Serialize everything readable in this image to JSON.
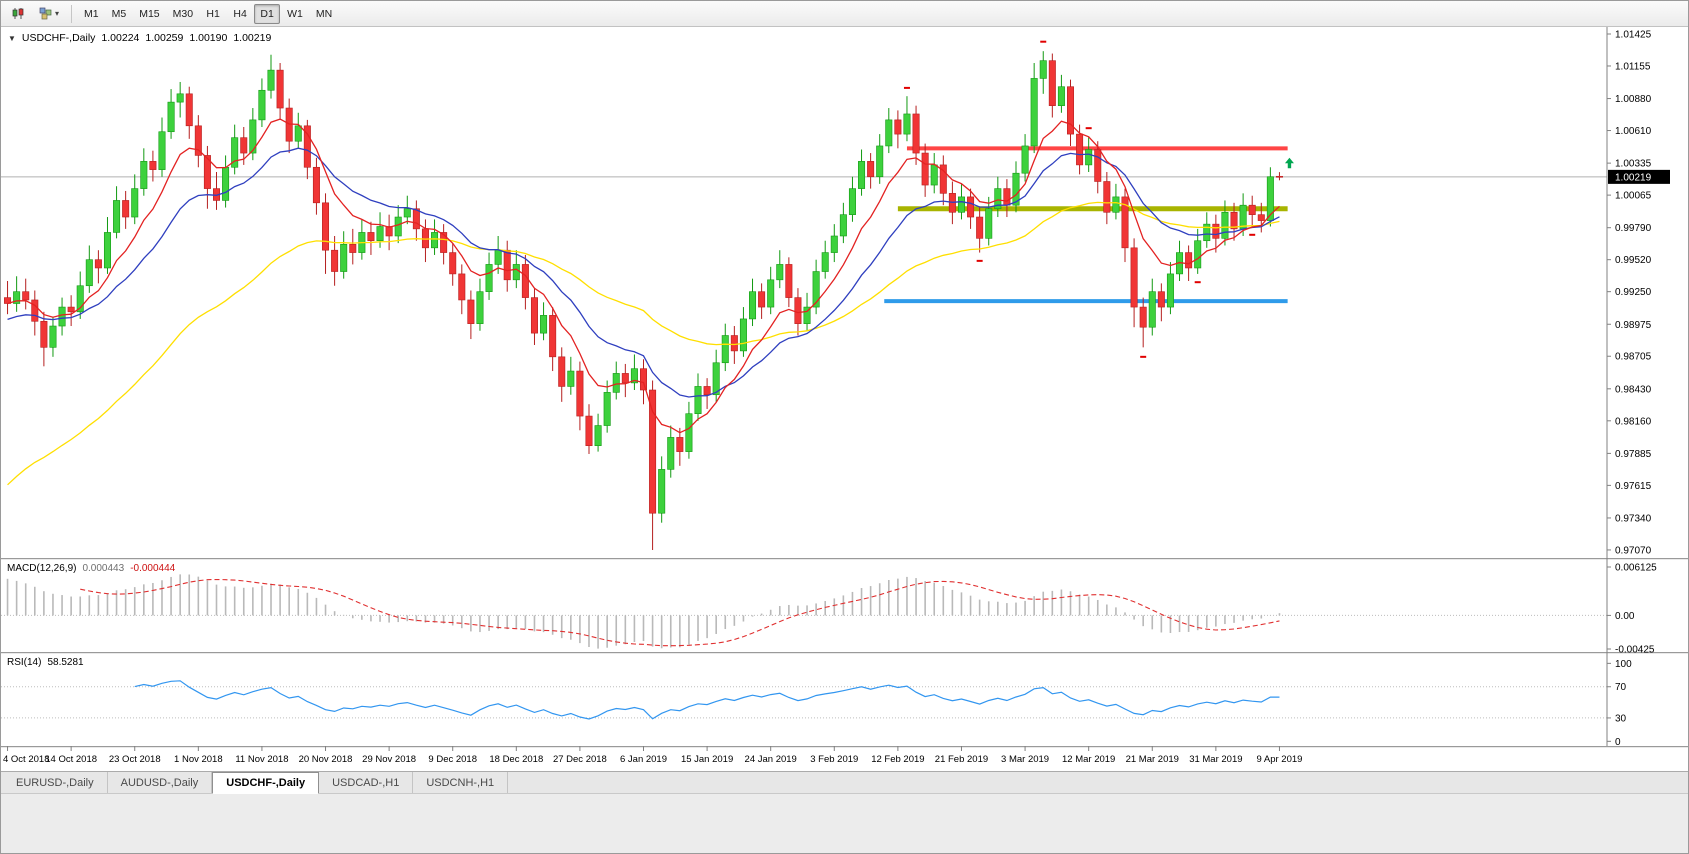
{
  "toolbar": {
    "timeframes": [
      "M1",
      "M5",
      "M15",
      "M30",
      "H1",
      "H4",
      "D1",
      "W1",
      "MN"
    ],
    "active_timeframe": "D1"
  },
  "chart_header": {
    "symbol": "USDCHF-,Daily",
    "open": "1.00224",
    "high": "1.00259",
    "low": "1.00190",
    "close": "1.00219"
  },
  "price_axis": {
    "labels": [
      "1.01425",
      "1.01155",
      "1.00880",
      "1.00610",
      "1.00335",
      "1.00065",
      "0.99790",
      "0.99520",
      "0.99250",
      "0.98975",
      "0.98705",
      "0.98430",
      "0.98160",
      "0.97885",
      "0.97615",
      "0.97340",
      "0.97070"
    ],
    "current_price_tag": "1.00219"
  },
  "macd_panel": {
    "label": "MACD(12,26,9)",
    "value_main": "0.000443",
    "value_signal": "-0.000444",
    "axis_labels": [
      "0.006125",
      "0.00",
      "-0.00425"
    ]
  },
  "rsi_panel": {
    "label": "RSI(14)",
    "value": "58.5281",
    "axis_labels": [
      "100",
      "70",
      "30",
      "0"
    ]
  },
  "tabs": [
    {
      "label": "EURUSD-,Daily",
      "active": false
    },
    {
      "label": "AUDUSD-,Daily",
      "active": false
    },
    {
      "label": "USDCHF-,Daily",
      "active": true
    },
    {
      "label": "USDCAD-,H1",
      "active": false
    },
    {
      "label": "USDCNH-,H1",
      "active": false
    }
  ],
  "colors": {
    "up": "#3dd13d",
    "up_border": "#119911",
    "down": "#f03535",
    "down_border": "#b51f1f",
    "hist": "#b9b9b9",
    "signal": "#e03030",
    "rsi": "#3296f0",
    "current_price_line": "#b0b0b0",
    "tag_bg": "#000000",
    "tag_text": "#ffffff",
    "axis_line": "#808080",
    "level_dots": "#bdbdbd"
  },
  "chart_data": {
    "type": "candlestick",
    "title": "USDCHF-,Daily",
    "symbol": "USDCHF",
    "timeframe": "Daily",
    "y_range": [
      0.97002,
      1.01484
    ],
    "x_tick_step": 7,
    "x_tick_labels": [
      "4 Oct 2018",
      "14 Oct 2018",
      "23 Oct 2018",
      "1 Nov 2018",
      "11 Nov 2018",
      "20 Nov 2018",
      "29 Nov 2018",
      "9 Dec 2018",
      "18 Dec 2018",
      "27 Dec 2018",
      "6 Jan 2019",
      "15 Jan 2019",
      "24 Jan 2019",
      "3 Feb 2019",
      "12 Feb 2019",
      "21 Feb 2019",
      "3 Mar 2019",
      "12 Mar 2019",
      "21 Mar 2019",
      "31 Mar 2019",
      "9 Apr 2019"
    ],
    "candles": [
      [
        0.992,
        0.9934,
        0.9906,
        0.9915
      ],
      [
        0.9915,
        0.9938,
        0.9908,
        0.9925
      ],
      [
        0.9925,
        0.9936,
        0.991,
        0.9918
      ],
      [
        0.9918,
        0.9926,
        0.9888,
        0.99
      ],
      [
        0.99,
        0.9908,
        0.9862,
        0.9878
      ],
      [
        0.9878,
        0.9904,
        0.987,
        0.9896
      ],
      [
        0.9896,
        0.992,
        0.9888,
        0.9912
      ],
      [
        0.9912,
        0.9922,
        0.9896,
        0.9908
      ],
      [
        0.9908,
        0.9942,
        0.9902,
        0.993
      ],
      [
        0.993,
        0.9964,
        0.9924,
        0.9952
      ],
      [
        0.9952,
        0.996,
        0.9932,
        0.9945
      ],
      [
        0.9945,
        0.9988,
        0.994,
        0.9975
      ],
      [
        0.9975,
        1.0014,
        0.997,
        1.0002
      ],
      [
        1.0002,
        1.001,
        0.9978,
        0.9988
      ],
      [
        0.9988,
        1.0024,
        0.9982,
        1.0012
      ],
      [
        1.0012,
        1.0046,
        1.0006,
        1.0035
      ],
      [
        1.0035,
        1.0044,
        1.0018,
        1.0028
      ],
      [
        1.0028,
        1.0072,
        1.0022,
        1.006
      ],
      [
        1.006,
        1.0096,
        1.0054,
        1.0085
      ],
      [
        1.0085,
        1.0102,
        1.0072,
        1.0092
      ],
      [
        1.0092,
        1.0098,
        1.0054,
        1.0065
      ],
      [
        1.0065,
        1.0074,
        1.003,
        1.004
      ],
      [
        1.004,
        1.0048,
        0.9995,
        1.0012
      ],
      [
        1.0012,
        1.0026,
        0.9994,
        1.0002
      ],
      [
        1.0002,
        1.004,
        0.9996,
        1.003
      ],
      [
        1.003,
        1.0066,
        1.0024,
        1.0055
      ],
      [
        1.0055,
        1.0064,
        1.0032,
        1.0042
      ],
      [
        1.0042,
        1.008,
        1.0036,
        1.007
      ],
      [
        1.007,
        1.0105,
        1.0064,
        1.0095
      ],
      [
        1.0095,
        1.0125,
        1.0088,
        1.0112
      ],
      [
        1.0112,
        1.0118,
        1.007,
        1.008
      ],
      [
        1.008,
        1.0088,
        1.0042,
        1.0052
      ],
      [
        1.0052,
        1.0076,
        1.0046,
        1.0065
      ],
      [
        1.0065,
        1.007,
        1.002,
        1.003
      ],
      [
        1.003,
        1.0038,
        0.999,
        1.0
      ],
      [
        1.0,
        1.0008,
        0.994,
        0.996
      ],
      [
        0.996,
        0.9972,
        0.993,
        0.9942
      ],
      [
        0.9942,
        0.9976,
        0.9936,
        0.9965
      ],
      [
        0.9965,
        0.9978,
        0.9948,
        0.9958
      ],
      [
        0.9958,
        0.9986,
        0.9952,
        0.9975
      ],
      [
        0.9975,
        0.9984,
        0.9956,
        0.9968
      ],
      [
        0.9968,
        0.9992,
        0.9962,
        0.998
      ],
      [
        0.998,
        0.999,
        0.996,
        0.9972
      ],
      [
        0.9972,
        0.9998,
        0.9966,
        0.9988
      ],
      [
        0.9988,
        1.0006,
        0.9982,
        0.9995
      ],
      [
        0.9995,
        1.0002,
        0.9968,
        0.9978
      ],
      [
        0.9978,
        0.9986,
        0.995,
        0.9962
      ],
      [
        0.9962,
        0.9986,
        0.9956,
        0.9975
      ],
      [
        0.9975,
        0.9982,
        0.9948,
        0.9958
      ],
      [
        0.9958,
        0.9966,
        0.993,
        0.994
      ],
      [
        0.994,
        0.9948,
        0.9906,
        0.9918
      ],
      [
        0.9918,
        0.9926,
        0.9885,
        0.9898
      ],
      [
        0.9898,
        0.9936,
        0.9892,
        0.9925
      ],
      [
        0.9925,
        0.9958,
        0.9918,
        0.9948
      ],
      [
        0.9948,
        0.9972,
        0.994,
        0.996
      ],
      [
        0.996,
        0.9968,
        0.9925,
        0.9935
      ],
      [
        0.9935,
        0.996,
        0.9928,
        0.9948
      ],
      [
        0.9948,
        0.9956,
        0.991,
        0.992
      ],
      [
        0.992,
        0.9928,
        0.988,
        0.989
      ],
      [
        0.989,
        0.9916,
        0.9884,
        0.9905
      ],
      [
        0.9905,
        0.9912,
        0.9858,
        0.987
      ],
      [
        0.987,
        0.9878,
        0.9832,
        0.9845
      ],
      [
        0.9845,
        0.987,
        0.9838,
        0.9858
      ],
      [
        0.9858,
        0.9866,
        0.9808,
        0.982
      ],
      [
        0.982,
        0.983,
        0.9788,
        0.9795
      ],
      [
        0.9795,
        0.9822,
        0.979,
        0.9812
      ],
      [
        0.9812,
        0.985,
        0.9806,
        0.984
      ],
      [
        0.984,
        0.9866,
        0.9834,
        0.9856
      ],
      [
        0.9856,
        0.9864,
        0.9836,
        0.9848
      ],
      [
        0.9848,
        0.9872,
        0.9842,
        0.986
      ],
      [
        0.986,
        0.9868,
        0.983,
        0.9842
      ],
      [
        0.9842,
        0.985,
        0.9707,
        0.9738
      ],
      [
        0.9738,
        0.9786,
        0.973,
        0.9775
      ],
      [
        0.9775,
        0.9812,
        0.9768,
        0.9802
      ],
      [
        0.9802,
        0.981,
        0.9778,
        0.979
      ],
      [
        0.979,
        0.9832,
        0.9784,
        0.9822
      ],
      [
        0.9822,
        0.9856,
        0.9816,
        0.9845
      ],
      [
        0.9845,
        0.9852,
        0.9826,
        0.9838
      ],
      [
        0.9838,
        0.9876,
        0.9832,
        0.9865
      ],
      [
        0.9865,
        0.9898,
        0.9858,
        0.9888
      ],
      [
        0.9888,
        0.9896,
        0.9864,
        0.9875
      ],
      [
        0.9875,
        0.9912,
        0.987,
        0.9902
      ],
      [
        0.9902,
        0.9936,
        0.9896,
        0.9925
      ],
      [
        0.9925,
        0.9932,
        0.9902,
        0.9912
      ],
      [
        0.9912,
        0.9946,
        0.9906,
        0.9935
      ],
      [
        0.9935,
        0.996,
        0.9928,
        0.9948
      ],
      [
        0.9948,
        0.9954,
        0.9912,
        0.992
      ],
      [
        0.992,
        0.9928,
        0.9888,
        0.9898
      ],
      [
        0.9898,
        0.9924,
        0.9892,
        0.9912
      ],
      [
        0.9912,
        0.9952,
        0.9906,
        0.9942
      ],
      [
        0.9942,
        0.9968,
        0.9936,
        0.9958
      ],
      [
        0.9958,
        0.9982,
        0.995,
        0.9972
      ],
      [
        0.9972,
        1.0,
        0.9966,
        0.999
      ],
      [
        0.999,
        1.0022,
        0.9984,
        1.0012
      ],
      [
        1.0012,
        1.0045,
        1.0006,
        1.0035
      ],
      [
        1.0035,
        1.0042,
        1.0012,
        1.0022
      ],
      [
        1.0022,
        1.0058,
        1.0016,
        1.0048
      ],
      [
        1.0048,
        1.008,
        1.0042,
        1.007
      ],
      [
        1.007,
        1.0078,
        1.0046,
        1.0058
      ],
      [
        1.0058,
        1.009,
        1.0052,
        1.0075
      ],
      [
        1.0075,
        1.0082,
        1.0032,
        1.0042
      ],
      [
        1.0042,
        1.005,
        1.0005,
        1.0015
      ],
      [
        1.0015,
        1.0042,
        1.0008,
        1.0032
      ],
      [
        1.0032,
        1.004,
        0.9998,
        1.0008
      ],
      [
        1.0008,
        1.0018,
        0.9982,
        0.9992
      ],
      [
        0.9992,
        1.0016,
        0.9986,
        1.0005
      ],
      [
        1.0005,
        1.0012,
        0.9978,
        0.9988
      ],
      [
        0.9988,
        0.9996,
        0.9958,
        0.997
      ],
      [
        0.997,
        1.0005,
        0.9964,
        0.9995
      ],
      [
        0.9995,
        1.0022,
        0.9988,
        1.0012
      ],
      [
        1.0012,
        1.002,
        0.9988,
        0.9998
      ],
      [
        0.9998,
        1.0035,
        0.9992,
        1.0025
      ],
      [
        1.0025,
        1.0058,
        1.0018,
        1.0048
      ],
      [
        1.0048,
        1.0118,
        1.0042,
        1.0105
      ],
      [
        1.0105,
        1.0128,
        1.0092,
        1.012
      ],
      [
        1.012,
        1.0126,
        1.0072,
        1.0082
      ],
      [
        1.0082,
        1.0108,
        1.0076,
        1.0098
      ],
      [
        1.0098,
        1.0104,
        1.0048,
        1.0058
      ],
      [
        1.0058,
        1.0066,
        1.0024,
        1.0032
      ],
      [
        1.0032,
        1.0056,
        1.0026,
        1.0045
      ],
      [
        1.0045,
        1.0052,
        1.0008,
        1.0018
      ],
      [
        1.0018,
        1.0026,
        0.9982,
        0.9992
      ],
      [
        0.9992,
        1.0016,
        0.9986,
        1.0005
      ],
      [
        1.0005,
        1.0012,
        0.995,
        0.9962
      ],
      [
        0.9962,
        0.997,
        0.9895,
        0.9912
      ],
      [
        0.9912,
        0.992,
        0.9878,
        0.9895
      ],
      [
        0.9895,
        0.9936,
        0.9888,
        0.9925
      ],
      [
        0.9925,
        0.9932,
        0.99,
        0.9912
      ],
      [
        0.9912,
        0.995,
        0.9906,
        0.994
      ],
      [
        0.994,
        0.9968,
        0.9934,
        0.9958
      ],
      [
        0.9958,
        0.9964,
        0.9934,
        0.9945
      ],
      [
        0.9945,
        0.9978,
        0.994,
        0.9968
      ],
      [
        0.9968,
        0.9992,
        0.9962,
        0.9982
      ],
      [
        0.9982,
        0.999,
        0.9958,
        0.997
      ],
      [
        0.997,
        1.0002,
        0.9964,
        0.9992
      ],
      [
        0.9992,
        1.0,
        0.9968,
        0.9978
      ],
      [
        0.9978,
        1.0008,
        0.9972,
        0.9998
      ],
      [
        0.9998,
        1.0006,
        0.998,
        0.999
      ],
      [
        0.999,
        1.0,
        0.9975,
        0.9985
      ],
      [
        0.9985,
        1.003,
        0.998,
        1.0022
      ],
      [
        1.00224,
        1.00259,
        1.0019,
        1.00219
      ]
    ],
    "moving_averages": [
      {
        "name": "slow",
        "color": "#ffdf00",
        "period": 45,
        "seed": 0.9755
      },
      {
        "name": "medium",
        "color": "#2f3fbf",
        "period": 18,
        "seed": 0.99
      },
      {
        "name": "fast",
        "color": "#e32222",
        "period": 8,
        "seed": 0.9915
      }
    ],
    "hlines": [
      {
        "color": "#ff4545",
        "price": 1.0046,
        "from_index": 99,
        "to_index": 140.9,
        "width": 4
      },
      {
        "color": "#a8b400",
        "price": 0.9995,
        "from_index": 98,
        "to_index": 140.9,
        "width": 5
      },
      {
        "color": "#2f9bea",
        "price": 0.9917,
        "from_index": 96.5,
        "to_index": 140.9,
        "width": 4
      }
    ],
    "current_price": 1.00219,
    "markers": [
      {
        "index": 99,
        "price": 1.0097,
        "direction": "up"
      },
      {
        "index": 114,
        "price": 1.0136,
        "direction": "up"
      },
      {
        "index": 107,
        "price": 0.9951,
        "direction": "down"
      },
      {
        "index": 119,
        "price": 1.0063,
        "direction": "up"
      },
      {
        "index": 125,
        "price": 0.987,
        "direction": "down"
      },
      {
        "index": 131,
        "price": 0.9933,
        "direction": "down"
      },
      {
        "index": 137,
        "price": 0.9973,
        "direction": "down"
      }
    ],
    "last_candle_marker": {
      "index": 140,
      "price": 1.0033,
      "color": "#00a650"
    },
    "macd": {
      "fast": 12,
      "slow": 26,
      "signal": 9,
      "seed_offset": 0.005,
      "y_range": [
        -0.00463,
        0.00701
      ]
    },
    "rsi": {
      "period": 14,
      "levels": [
        70,
        30
      ],
      "y_range": [
        -6,
        112
      ]
    }
  }
}
